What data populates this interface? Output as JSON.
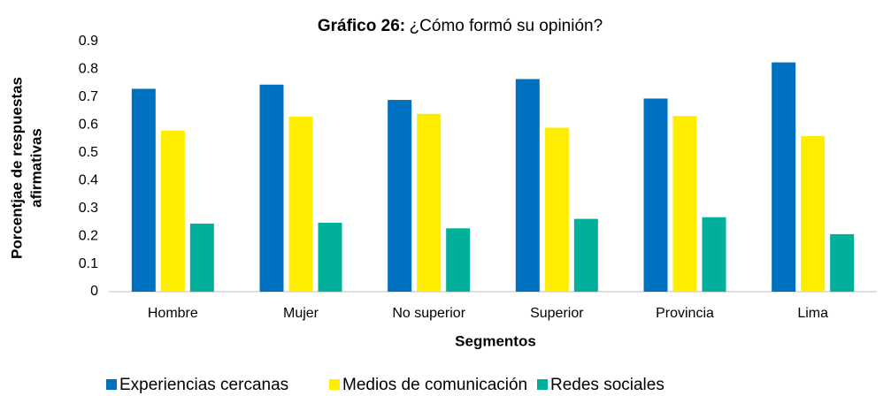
{
  "chart_data": {
    "type": "bar",
    "title_label": "Gráfico 26:",
    "title": "¿Cómo formó su opinión?",
    "x_label": "Segmentos",
    "y_label": [
      "Porcentjae de respuestas",
      "afirmativas"
    ],
    "categories": [
      "Hombre",
      "Mujer",
      "No superior",
      "Superior",
      "Provincia",
      "Lima"
    ],
    "series": [
      {
        "name": "Experiencias cercanas",
        "color": "#0070c0",
        "values": [
          0.73,
          0.745,
          0.69,
          0.765,
          0.695,
          0.825
        ]
      },
      {
        "name": "Medios de comunicación",
        "color": "#ffed00",
        "values": [
          0.58,
          0.63,
          0.64,
          0.59,
          0.632,
          0.56
        ]
      },
      {
        "name": "Redes sociales",
        "color": "#00b09a",
        "values": [
          0.245,
          0.248,
          0.228,
          0.262,
          0.268,
          0.207
        ]
      }
    ],
    "ylim": [
      0,
      0.9
    ],
    "yticks": [
      0,
      0.1,
      0.2,
      0.3,
      0.4,
      0.5,
      0.6,
      0.7,
      0.8,
      0.9
    ],
    "grid": false,
    "legend": "bottom"
  }
}
